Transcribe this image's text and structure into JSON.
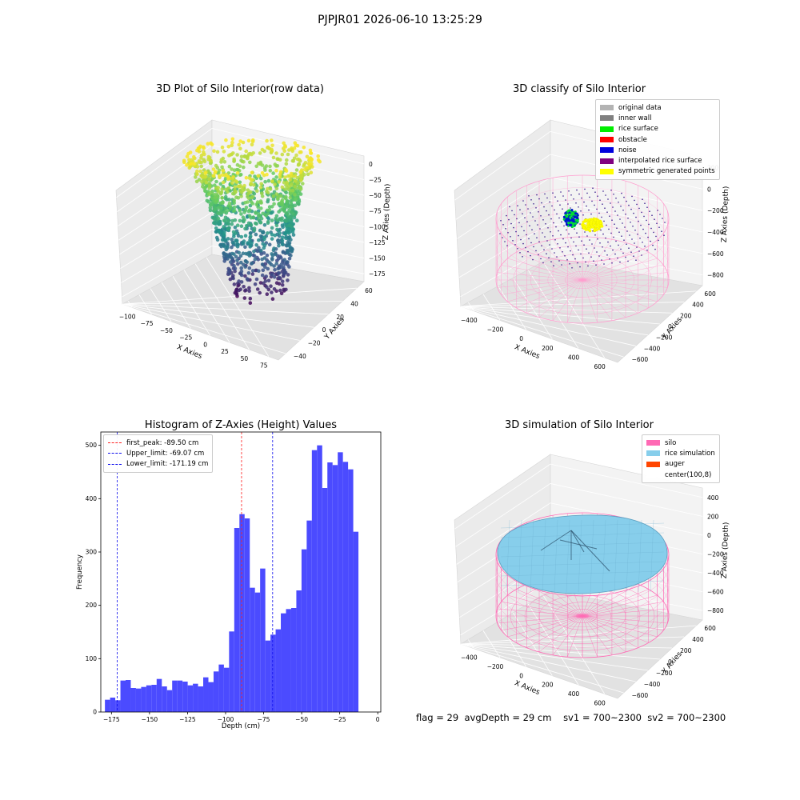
{
  "figure": {
    "suptitle": "PJPJR01 2026-06-10 13:25:29",
    "status_line": {
      "flag": "flag = 29",
      "avg_depth": "avgDepth = 29 cm",
      "sv1": "sv1 = 700~2300",
      "sv2": "sv2 = 700~2300"
    }
  },
  "chart_data": [
    {
      "type": "scatter",
      "projection": "3d",
      "title": "3D Plot of Silo Interior(row data)",
      "xlabel": "X Axies",
      "ylabel": "Y Axies",
      "zlabel": "Z Axies (Depth)",
      "x_ticks": [
        "−100",
        "−75",
        "−50",
        "−25",
        "0",
        "25",
        "50",
        "75"
      ],
      "y_ticks": [
        "−40",
        "−20",
        "0",
        "20",
        "40",
        "60"
      ],
      "z_ticks": [
        "0",
        "−25",
        "−50",
        "−75",
        "−100",
        "−125",
        "−150",
        "−175"
      ],
      "colormap": "viridis",
      "grid": true
    },
    {
      "type": "scatter",
      "projection": "3d",
      "title": "3D classify of Silo Interior",
      "xlabel": "X Axies",
      "ylabel": "Y Axies",
      "zlabel": "Z Axies (Depth)",
      "x_ticks": [
        "−400",
        "−200",
        "0",
        "200",
        "400",
        "600"
      ],
      "y_ticks": [
        "−600",
        "−400",
        "−200",
        "0",
        "200",
        "400",
        "600"
      ],
      "z_ticks": [
        "200",
        "0",
        "−200",
        "−400",
        "−600",
        "−800"
      ],
      "legend_position": "top-right",
      "legend": [
        {
          "label": "original data",
          "color": "#b3b3b3"
        },
        {
          "label": "inner wall",
          "color": "#808080"
        },
        {
          "label": "rice surface",
          "color": "#00ee00"
        },
        {
          "label": "obstacle",
          "color": "#ff0000"
        },
        {
          "label": "noise",
          "color": "#0000dd"
        },
        {
          "label": "interpolated rice surface",
          "color": "#800080"
        },
        {
          "label": "symmetric generated points",
          "color": "#ffff00"
        }
      ],
      "grid": true
    },
    {
      "type": "bar",
      "title": "Histogram of Z-Axies (Height) Values",
      "xlabel": "Depth (cm)",
      "ylabel": "Frequency",
      "xlim": [
        -182,
        2
      ],
      "ylim": [
        0,
        525
      ],
      "x_ticks": [
        -175,
        -150,
        -125,
        -100,
        -75,
        -50,
        -25,
        0
      ],
      "y_ticks": [
        0,
        100,
        200,
        300,
        400,
        500
      ],
      "bin_start": -179.3,
      "bin_width": 3.4,
      "values": [
        23,
        27,
        22,
        59,
        60,
        45,
        44,
        47,
        50,
        51,
        62,
        48,
        41,
        59,
        59,
        57,
        50,
        53,
        48,
        65,
        56,
        76,
        89,
        83,
        151,
        345,
        371,
        363,
        233,
        224,
        269,
        134,
        145,
        155,
        185,
        193,
        195,
        228,
        305,
        359,
        491,
        500,
        420,
        468,
        463,
        487,
        469,
        455,
        338
      ],
      "bar_color": "#4b4bff",
      "lines": [
        {
          "label": "first_peak: -89.50 cm",
          "x": -89.5,
          "color": "#ff2020"
        },
        {
          "label": "Upper_limit: -69.07 cm",
          "x": -69.07,
          "color": "#1010ee"
        },
        {
          "label": "Lower_limit: -171.19 cm",
          "x": -171.19,
          "color": "#1010ee"
        }
      ],
      "legend_position": "top-left"
    },
    {
      "type": "surface",
      "projection": "3d",
      "title": "3D simulation of Silo Interior",
      "xlabel": "X Axies",
      "ylabel": "Y Axies",
      "zlabel": "Z Axies (Depth)",
      "x_ticks": [
        "−400",
        "−200",
        "0",
        "200",
        "400",
        "600"
      ],
      "y_ticks": [
        "−600",
        "−400",
        "−200",
        "0",
        "200",
        "400",
        "600"
      ],
      "z_ticks": [
        "400",
        "200",
        "0",
        "−200",
        "−400",
        "−600",
        "−800"
      ],
      "legend_position": "top-right",
      "legend": [
        {
          "label": "silo",
          "color": "#ff69b4"
        },
        {
          "label": "rice simulation",
          "color": "#87ceeb"
        },
        {
          "label": "auger",
          "color": "#ff4500"
        },
        {
          "label": "center(100,8)",
          "color": "#ffffff"
        }
      ],
      "grid": true
    }
  ]
}
